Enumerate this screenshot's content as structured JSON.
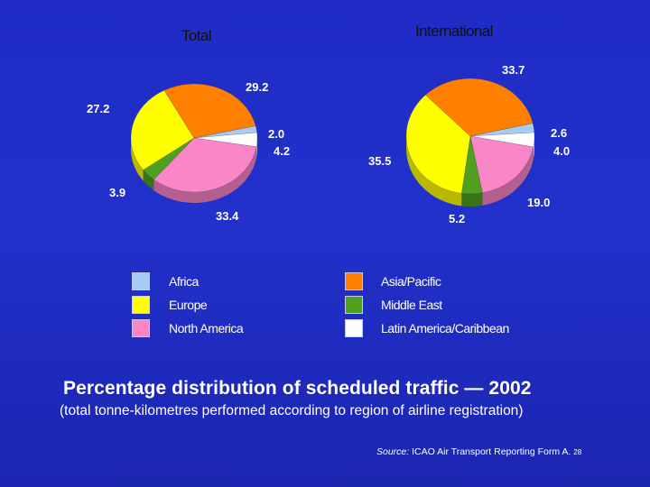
{
  "colors": {
    "Africa": "#a6cbf4",
    "Asia/Pacific": "#ff8000",
    "Europe": "#ffff00",
    "Middle East": "#4fa01e",
    "North America": "#f986c6",
    "Latin America/Caribbean": "#ffffff"
  },
  "chart_data": [
    {
      "type": "pie",
      "title": "Total",
      "labels": [
        "Africa",
        "Asia/Pacific",
        "Europe",
        "Middle East",
        "North America",
        "Latin America/Caribbean"
      ],
      "values": [
        2.0,
        29.2,
        27.2,
        3.9,
        33.4,
        4.2
      ]
    },
    {
      "type": "pie",
      "title": "International",
      "labels": [
        "Africa",
        "Asia/Pacific",
        "Europe",
        "Middle East",
        "North America",
        "Latin America/Caribbean"
      ],
      "values": [
        2.6,
        33.7,
        35.5,
        5.2,
        19.0,
        4.0
      ]
    }
  ],
  "legend": {
    "left": [
      "Africa",
      "Europe",
      "North America"
    ],
    "right": [
      "Asia/Pacific",
      "Middle East",
      "Latin America/Caribbean"
    ]
  },
  "title": "Percentage distribution of scheduled traffic — 2002",
  "subtitle": "(total tonne-kilometres performed according to region of airline registration)",
  "source": {
    "prefix": "Source:",
    "text": "ICAO Air Transport Reporting Form A.",
    "page": "28"
  }
}
